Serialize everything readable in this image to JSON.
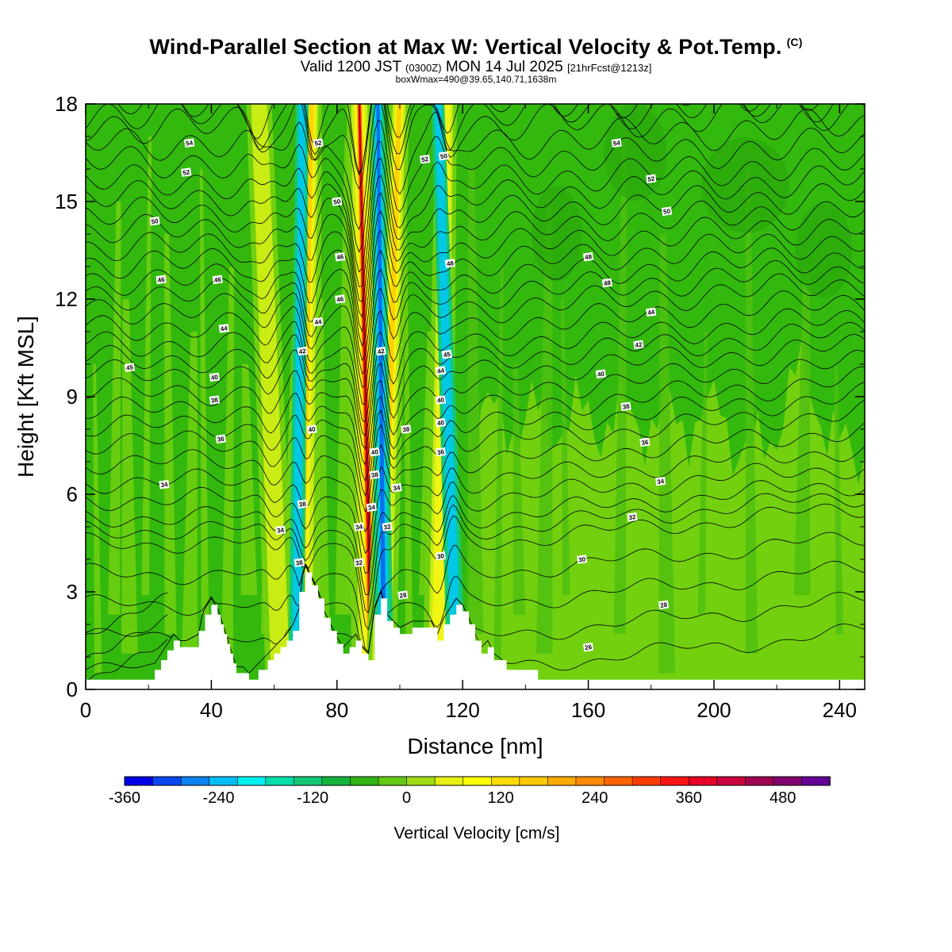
{
  "title": {
    "main": "Wind-Parallel Section at Max W: Vertical Velocity & Pot.Temp.",
    "copyright": "(C)",
    "valid_prefix": "Valid 1200 JST",
    "valid_utc": "(0300Z)",
    "valid_date": "MON 14 Jul 2025",
    "forecast_info": "[21hrFcst@1213z]",
    "box_info": "boxWmax=490@39.65,140.71,1638m"
  },
  "chart_data": {
    "type": "heatmap",
    "xlabel": "Distance [nm]",
    "ylabel": "Height [Kft MSL]",
    "xlim": [
      0,
      248
    ],
    "ylim": [
      0,
      18
    ],
    "xticks": [
      0,
      40,
      80,
      120,
      160,
      200,
      240
    ],
    "yticks": [
      0,
      3,
      6,
      9,
      12,
      15,
      18
    ],
    "colorbar": {
      "title": "Vertical Velocity [cm/s]",
      "min": -360,
      "max": 540,
      "step": 40,
      "tick_values": [
        -360,
        -240,
        -120,
        0,
        120,
        240,
        360,
        480
      ],
      "tick_labels": [
        "-360",
        "-240",
        "-120",
        "0",
        "120",
        "240",
        "360",
        "480"
      ],
      "colors": [
        "#0000e6",
        "#0a46f0",
        "#0a82f0",
        "#00bef5",
        "#00f0f0",
        "#00dcaa",
        "#14c878",
        "#14b43c",
        "#32b414",
        "#64c814",
        "#a0dc14",
        "#e6f014",
        "#ffff00",
        "#ffdc00",
        "#ffc800",
        "#ffaa00",
        "#ff8c00",
        "#ff6400",
        "#ff3c00",
        "#ff1414",
        "#e60028",
        "#c8003c",
        "#a00050",
        "#82006e",
        "#640096"
      ]
    },
    "field_colors": {
      "background": "#33b80e",
      "light_band": "#72d00f",
      "mid_green": "#4fc00f",
      "updraft_weak": "#c8ec14",
      "updraft": "#f0f514",
      "updraft_strong": "#ffd200",
      "updraft_max": "#ff4000",
      "updraft_core": "#b00020",
      "downdraft": "#14c878",
      "downdraft_strong": "#00c8e6",
      "downdraft_max": "#0a6ef0",
      "terrain": "#ffffff"
    },
    "terrain": {
      "x": [
        0,
        21,
        22,
        24,
        26,
        28,
        30,
        32,
        36,
        36,
        38,
        40,
        42,
        43,
        44,
        45,
        46,
        47,
        48,
        50,
        52,
        55,
        58,
        60,
        62,
        64,
        66,
        68,
        68,
        70,
        72,
        74,
        76,
        78,
        80,
        82,
        84,
        86,
        88,
        90,
        92,
        94,
        96,
        98,
        100,
        104,
        106,
        108,
        110,
        112,
        114,
        116,
        118,
        120,
        122,
        124,
        126,
        128,
        130,
        134,
        140,
        144,
        150,
        160,
        248
      ],
      "y": [
        0.3,
        0.3,
        0.6,
        0.9,
        1.2,
        1.5,
        1.3,
        1.3,
        1.5,
        1.8,
        2.3,
        2.6,
        2.3,
        2.0,
        1.7,
        1.4,
        1.1,
        0.8,
        0.5,
        0.5,
        0.3,
        0.6,
        0.9,
        1.1,
        1.3,
        1.5,
        1.8,
        2.3,
        3.0,
        3.6,
        3.2,
        2.8,
        2.2,
        1.8,
        1.4,
        1.1,
        1.3,
        1.5,
        1.1,
        0.9,
        2.3,
        2.8,
        2.1,
        1.9,
        1.7,
        1.9,
        1.9,
        1.9,
        1.9,
        1.5,
        2.0,
        2.3,
        2.6,
        2.4,
        2.0,
        1.5,
        1.1,
        1.3,
        0.9,
        0.6,
        0.6,
        0.3,
        0.3,
        0.3,
        0.3
      ]
    },
    "theta_contours": {
      "levels": [
        26,
        28,
        30,
        32,
        34,
        36,
        38,
        40,
        42,
        44,
        46,
        48,
        50,
        52,
        54
      ],
      "base_height_kft": [
        0.6,
        2.6,
        4.5,
        5.3,
        6.4,
        7.6,
        8.6,
        9.7,
        10.6,
        11.7,
        12.6,
        13.6,
        14.6,
        15.6,
        16.8
      ],
      "labels": [
        {
          "text": "54",
          "x": 33,
          "y": 16.8
        },
        {
          "text": "52",
          "x": 32,
          "y": 15.9
        },
        {
          "text": "50",
          "x": 22,
          "y": 14.4
        },
        {
          "text": "46",
          "x": 24,
          "y": 12.6
        },
        {
          "text": "46",
          "x": 42,
          "y": 12.6
        },
        {
          "text": "44",
          "x": 44,
          "y": 11.1
        },
        {
          "text": "40",
          "x": 41,
          "y": 9.6
        },
        {
          "text": "45",
          "x": 14,
          "y": 9.9
        },
        {
          "text": "38",
          "x": 41,
          "y": 8.9
        },
        {
          "text": "36",
          "x": 43,
          "y": 7.7
        },
        {
          "text": "34",
          "x": 25,
          "y": 6.3
        },
        {
          "text": "52",
          "x": 74,
          "y": 16.8
        },
        {
          "text": "50",
          "x": 80,
          "y": 15.0
        },
        {
          "text": "46",
          "x": 81,
          "y": 13.3
        },
        {
          "text": "46",
          "x": 81,
          "y": 12.0
        },
        {
          "text": "44",
          "x": 74,
          "y": 11.3
        },
        {
          "text": "42",
          "x": 69,
          "y": 10.4
        },
        {
          "text": "40",
          "x": 72,
          "y": 8.0
        },
        {
          "text": "38",
          "x": 69,
          "y": 5.7
        },
        {
          "text": "34",
          "x": 62,
          "y": 4.9
        },
        {
          "text": "38",
          "x": 68,
          "y": 3.9
        },
        {
          "text": "42",
          "x": 94,
          "y": 10.4
        },
        {
          "text": "40",
          "x": 92,
          "y": 7.3
        },
        {
          "text": "38",
          "x": 92,
          "y": 6.6
        },
        {
          "text": "34",
          "x": 91,
          "y": 5.6
        },
        {
          "text": "34",
          "x": 87,
          "y": 5.0
        },
        {
          "text": "32",
          "x": 96,
          "y": 5.0
        },
        {
          "text": "32",
          "x": 87,
          "y": 3.9
        },
        {
          "text": "34",
          "x": 99,
          "y": 6.2
        },
        {
          "text": "38",
          "x": 102,
          "y": 8.0
        },
        {
          "text": "28",
          "x": 101,
          "y": 2.9
        },
        {
          "text": "52",
          "x": 108,
          "y": 16.3
        },
        {
          "text": "50",
          "x": 114,
          "y": 16.4
        },
        {
          "text": "48",
          "x": 116,
          "y": 13.1
        },
        {
          "text": "45",
          "x": 115,
          "y": 10.3
        },
        {
          "text": "44",
          "x": 113,
          "y": 9.8
        },
        {
          "text": "40",
          "x": 113,
          "y": 8.9
        },
        {
          "text": "40",
          "x": 113,
          "y": 8.2
        },
        {
          "text": "36",
          "x": 113,
          "y": 7.3
        },
        {
          "text": "30",
          "x": 113,
          "y": 4.1
        },
        {
          "text": "54",
          "x": 169,
          "y": 16.8
        },
        {
          "text": "52",
          "x": 180,
          "y": 15.7
        },
        {
          "text": "50",
          "x": 185,
          "y": 14.7
        },
        {
          "text": "48",
          "x": 160,
          "y": 13.3
        },
        {
          "text": "48",
          "x": 166,
          "y": 12.5
        },
        {
          "text": "44",
          "x": 180,
          "y": 11.6
        },
        {
          "text": "42",
          "x": 176,
          "y": 10.6
        },
        {
          "text": "40",
          "x": 164,
          "y": 9.7
        },
        {
          "text": "38",
          "x": 172,
          "y": 8.7
        },
        {
          "text": "36",
          "x": 178,
          "y": 7.6
        },
        {
          "text": "34",
          "x": 183,
          "y": 6.4
        },
        {
          "text": "32",
          "x": 174,
          "y": 5.3
        },
        {
          "text": "30",
          "x": 158,
          "y": 4.0
        },
        {
          "text": "28",
          "x": 184,
          "y": 2.6
        },
        {
          "text": "26",
          "x": 160,
          "y": 1.3
        }
      ]
    },
    "updraft_plumes": [
      {
        "x_base": 68,
        "x_top": 72,
        "w_base": 4.0,
        "w_top": 2.0,
        "value": 200
      },
      {
        "x_base": 91,
        "x_top": 87,
        "w_base": 4.0,
        "w_top": 2.5,
        "value": 490
      },
      {
        "x_base": 94,
        "x_top": 100,
        "w_base": 3.0,
        "w_top": 2.0,
        "value": 200
      },
      {
        "x_base": 112,
        "x_top": 115,
        "w_base": 3.0,
        "w_top": 2.0,
        "value": 120
      },
      {
        "x_base": 62,
        "x_top": 55,
        "w_base": 3.0,
        "w_top": 2.5,
        "value": 80
      }
    ],
    "downdraft_plumes": [
      {
        "x_base": 67,
        "x_top": 69,
        "w_base": 2.5,
        "w_top": 2.0,
        "value": -200
      },
      {
        "x_base": 95,
        "x_top": 93,
        "w_base": 3.0,
        "w_top": 2.0,
        "value": -280
      },
      {
        "x_base": 118,
        "x_top": 112,
        "w_base": 3.0,
        "w_top": 2.0,
        "value": -160
      }
    ]
  }
}
